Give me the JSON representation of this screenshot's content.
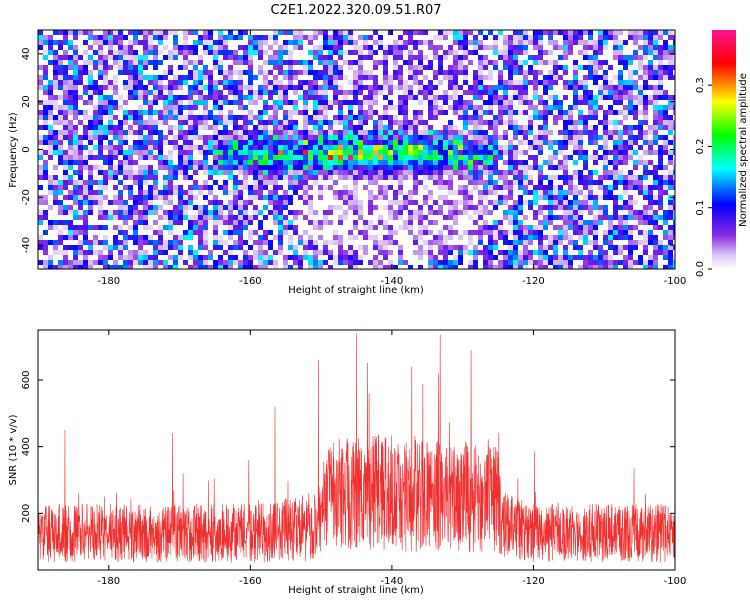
{
  "title": "C2E1.2022.320.09.51.R07",
  "chart_data": [
    {
      "type": "heatmap",
      "xlabel": "Height of straight line (km)",
      "ylabel": "Frequency (Hz)",
      "xlim": [
        -190,
        -100
      ],
      "ylim": [
        -50,
        50
      ],
      "xticks": [
        -180,
        -160,
        -140,
        -120,
        -100
      ],
      "yticks": [
        -40,
        -20,
        0,
        20,
        40
      ],
      "colorbar": {
        "label": "Normalized spectral amplitude",
        "range": [
          0.0,
          0.39
        ],
        "ticks": [
          0.0,
          0.1,
          0.2,
          0.3
        ],
        "tick_labels": [
          "0.0",
          "0.1",
          "0.2",
          "0.3"
        ]
      },
      "colors": [
        "#ffffff",
        "#8a2be2",
        "#0000ff",
        "#00ffff",
        "#00ff00",
        "#ffff00",
        "#ff0000",
        "#ff1493"
      ],
      "features": {
        "signal_band_frequency_hz": 0,
        "signal_band_x_range": [
          -165,
          -125
        ],
        "peak_amplitude_near_x": -145
      }
    },
    {
      "type": "line",
      "xlabel": "Height of straight line (km)",
      "ylabel": "SNR (10 * v/v)",
      "xlim": [
        -190,
        -100
      ],
      "ylim": [
        30,
        750
      ],
      "xticks": [
        -180,
        -160,
        -140,
        -120,
        -100
      ],
      "yticks": [
        200,
        400,
        600
      ],
      "color": "#f03030",
      "envelope": {
        "x": [
          -190,
          -180,
          -170,
          -160,
          -155,
          -150,
          -149,
          -145,
          -140,
          -135,
          -130,
          -125,
          -124,
          -120,
          -110,
          -100
        ],
        "baseline": [
          140,
          140,
          140,
          140,
          150,
          160,
          260,
          260,
          260,
          250,
          250,
          240,
          160,
          140,
          140,
          140
        ],
        "spread": [
          110,
          110,
          110,
          110,
          120,
          130,
          200,
          220,
          220,
          210,
          210,
          200,
          130,
          110,
          110,
          110
        ]
      },
      "peaks": [
        {
          "x": -145,
          "y": 740
        },
        {
          "x": -128.8,
          "y": 690
        },
        {
          "x": -150.4,
          "y": 660
        },
        {
          "x": -137.2,
          "y": 640
        },
        {
          "x": -133.4,
          "y": 620
        },
        {
          "x": -143.2,
          "y": 560
        },
        {
          "x": -156.5,
          "y": 520
        },
        {
          "x": -171,
          "y": 440
        },
        {
          "x": -186.2,
          "y": 450
        }
      ]
    }
  ]
}
